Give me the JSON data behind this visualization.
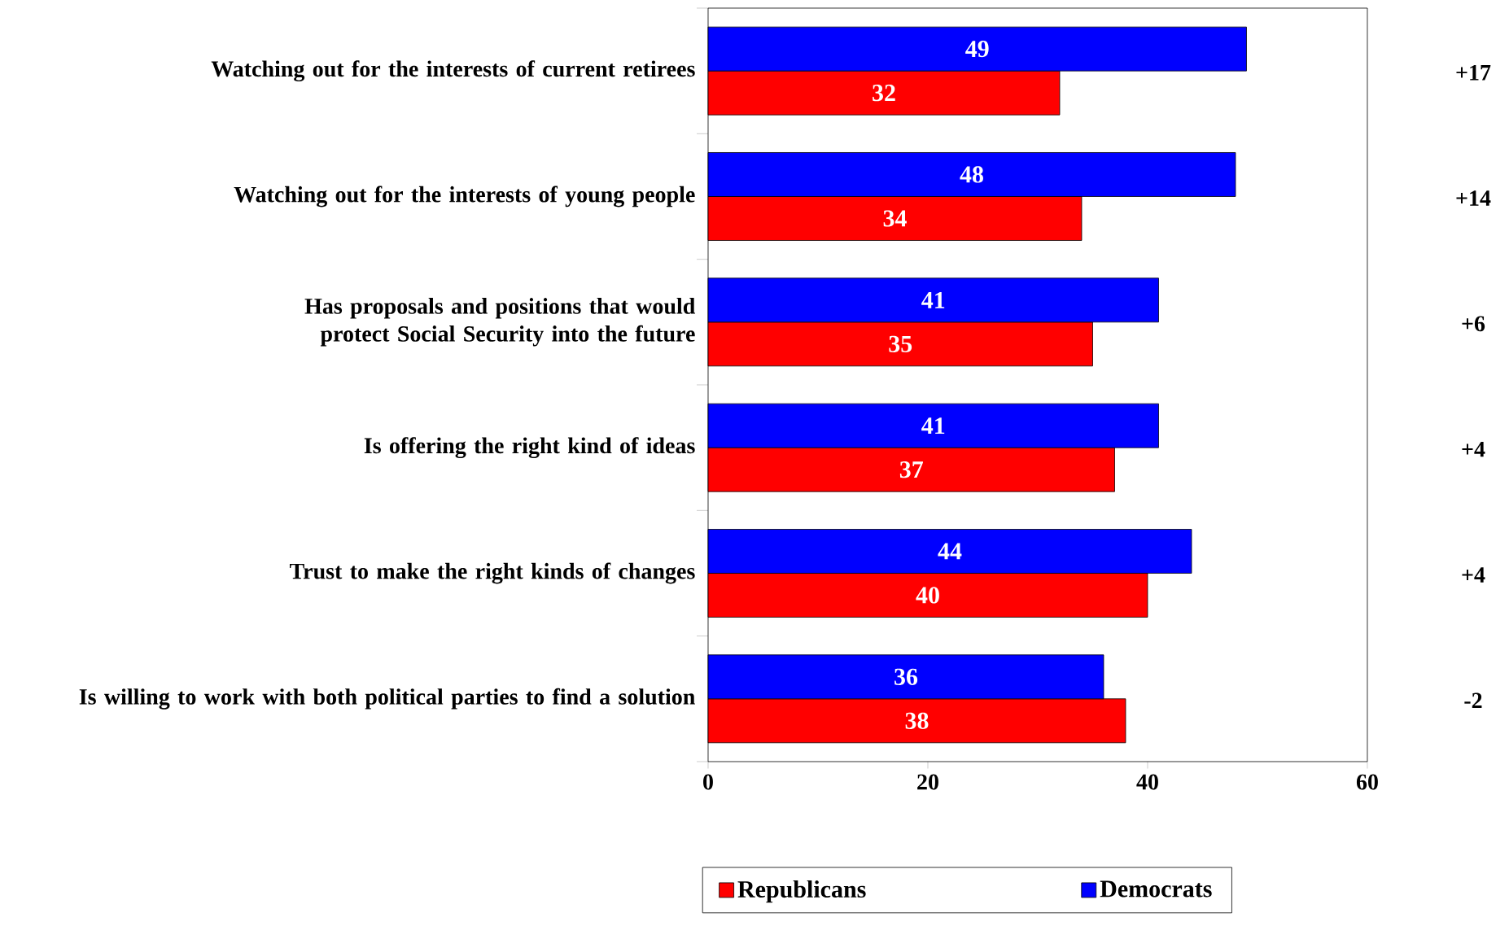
{
  "chart_data": {
    "type": "bar",
    "orientation": "horizontal",
    "categories": [
      "Watching out for the interests of current retirees",
      "Watching out for the interests of young people",
      "Has proposals and positions that would protect Social Security into the future",
      "Is offering the right kind of ideas",
      "Trust to make the right kinds of changes",
      "Is willing to work with both political parties to find a solution"
    ],
    "series": [
      {
        "name": "Republicans",
        "color": "#ff0000",
        "values": [
          32,
          34,
          35,
          37,
          40,
          38
        ]
      },
      {
        "name": "Democrats",
        "color": "#0000ff",
        "values": [
          49,
          48,
          41,
          41,
          44,
          36
        ]
      }
    ],
    "xlim": [
      0,
      60
    ],
    "xticks": [
      0,
      20,
      40,
      60
    ],
    "data_labels": true,
    "legend": "bottom",
    "grid": false,
    "annotations": [
      "+17",
      "+14",
      "+6",
      "+4",
      "+4",
      "-2"
    ]
  }
}
